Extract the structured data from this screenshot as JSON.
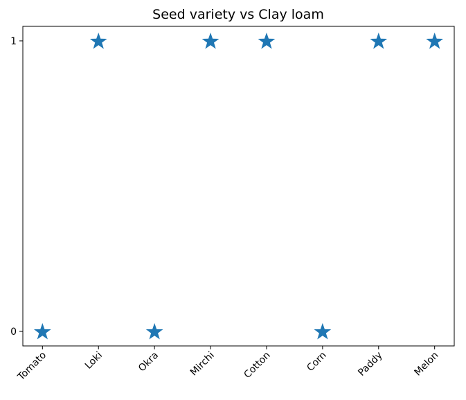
{
  "chart_data": {
    "type": "scatter",
    "title": "Seed variety vs Clay loam",
    "xlabel": "",
    "ylabel": "",
    "categories": [
      "Tomato",
      "Loki",
      "Okra",
      "Mirchi",
      "Cotton",
      "Corn",
      "Paddy",
      "Melon"
    ],
    "values": [
      0,
      1,
      0,
      1,
      1,
      0,
      1,
      1
    ],
    "yticks": [
      0,
      1
    ],
    "ylim": [
      -0.05,
      1.05
    ],
    "marker": "star",
    "color": "#1f77b4",
    "grid": false,
    "legend": "none"
  }
}
